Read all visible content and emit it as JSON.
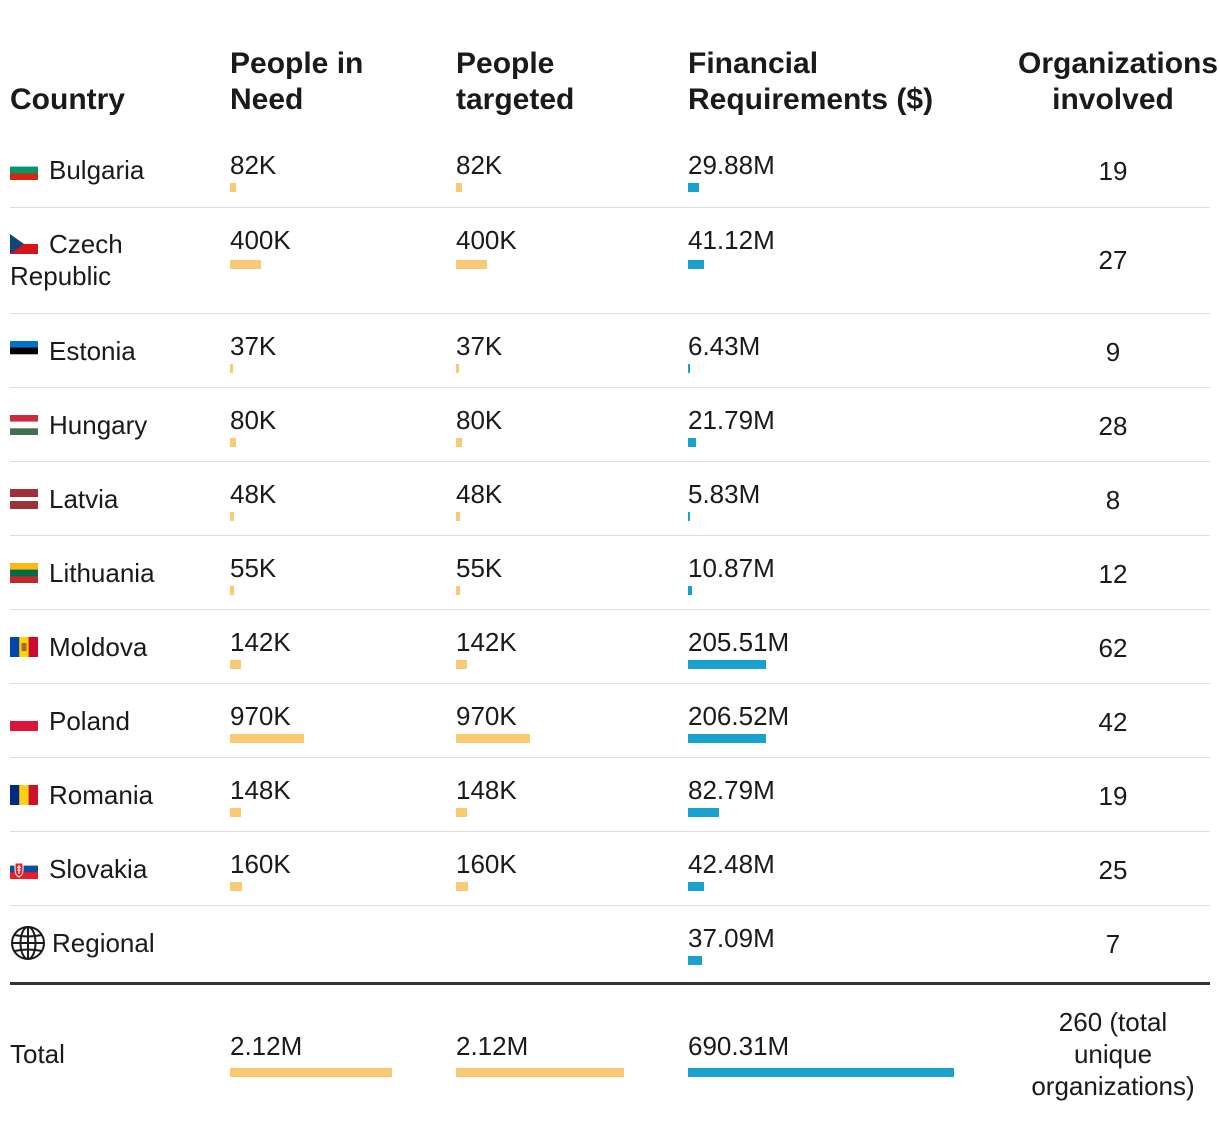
{
  "headers": {
    "country": [
      "Country"
    ],
    "people_in_need": [
      "People in",
      "Need"
    ],
    "people_targeted": [
      "People",
      "targeted"
    ],
    "financial": [
      "Financial",
      "Requirements ($)"
    ],
    "orgs": [
      "Organizations",
      "involved"
    ]
  },
  "colors": {
    "people_bar": "#f9c974",
    "financial_bar": "#1aa2cf",
    "rule": "#dedede",
    "total_rule": "#333333"
  },
  "rows": [
    {
      "country": "Bulgaria",
      "flag": "flag-bulgaria",
      "pin_label": "82K",
      "pt_label": "82K",
      "fin_label": "29.88M",
      "orgs": "19"
    },
    {
      "country": "Czech",
      "country_line2": "Republic",
      "flag": "flag-czech-republic",
      "pin_label": "400K",
      "pt_label": "400K",
      "fin_label": "41.12M",
      "orgs": "27"
    },
    {
      "country": "Estonia",
      "flag": "flag-estonia",
      "pin_label": "37K",
      "pt_label": "37K",
      "fin_label": "6.43M",
      "orgs": "9"
    },
    {
      "country": "Hungary",
      "flag": "flag-hungary",
      "pin_label": "80K",
      "pt_label": "80K",
      "fin_label": "21.79M",
      "orgs": "28"
    },
    {
      "country": "Latvia",
      "flag": "flag-latvia",
      "pin_label": "48K",
      "pt_label": "48K",
      "fin_label": "5.83M",
      "orgs": "8"
    },
    {
      "country": "Lithuania",
      "flag": "flag-lithuania",
      "pin_label": "55K",
      "pt_label": "55K",
      "fin_label": "10.87M",
      "orgs": "12"
    },
    {
      "country": "Moldova",
      "flag": "flag-moldova",
      "pin_label": "142K",
      "pt_label": "142K",
      "fin_label": "205.51M",
      "orgs": "62"
    },
    {
      "country": "Poland",
      "flag": "flag-poland",
      "pin_label": "970K",
      "pt_label": "970K",
      "fin_label": "206.52M",
      "orgs": "42"
    },
    {
      "country": "Romania",
      "flag": "flag-romania",
      "pin_label": "148K",
      "pt_label": "148K",
      "fin_label": "82.79M",
      "orgs": "19"
    },
    {
      "country": "Slovakia",
      "flag": "flag-slovakia",
      "pin_label": "160K",
      "pt_label": "160K",
      "fin_label": "42.48M",
      "orgs": "25"
    },
    {
      "country": "Regional",
      "flag": "globe-icon",
      "pin_label": "",
      "pt_label": "",
      "fin_label": "37.09M",
      "orgs": "7"
    }
  ],
  "total": {
    "label": "Total",
    "pin_label": "2.12M",
    "pt_label": "2.12M",
    "fin_label": "690.31M",
    "orgs_lines": [
      "260 (total",
      "unique",
      "organizations)"
    ]
  },
  "chart_data": {
    "type": "table",
    "title": "",
    "columns": [
      "Country",
      "People in Need",
      "People targeted",
      "Financial Requirements ($)",
      "Organizations involved"
    ],
    "categories": [
      "Bulgaria",
      "Czech Republic",
      "Estonia",
      "Hungary",
      "Latvia",
      "Lithuania",
      "Moldova",
      "Poland",
      "Romania",
      "Slovakia",
      "Regional"
    ],
    "series": [
      {
        "name": "People in Need",
        "values": [
          82000,
          400000,
          37000,
          80000,
          48000,
          55000,
          142000,
          970000,
          148000,
          160000,
          null
        ],
        "total": 2120000
      },
      {
        "name": "People targeted",
        "values": [
          82000,
          400000,
          37000,
          80000,
          48000,
          55000,
          142000,
          970000,
          148000,
          160000,
          null
        ],
        "total": 2120000
      },
      {
        "name": "Financial Requirements ($)",
        "values": [
          29880000,
          41120000,
          6430000,
          21790000,
          5830000,
          10870000,
          205510000,
          206520000,
          82790000,
          42480000,
          37090000
        ],
        "total": 690310000
      },
      {
        "name": "Organizations involved",
        "values": [
          19,
          27,
          9,
          28,
          8,
          12,
          62,
          42,
          19,
          25,
          7
        ],
        "total": 260
      }
    ]
  }
}
